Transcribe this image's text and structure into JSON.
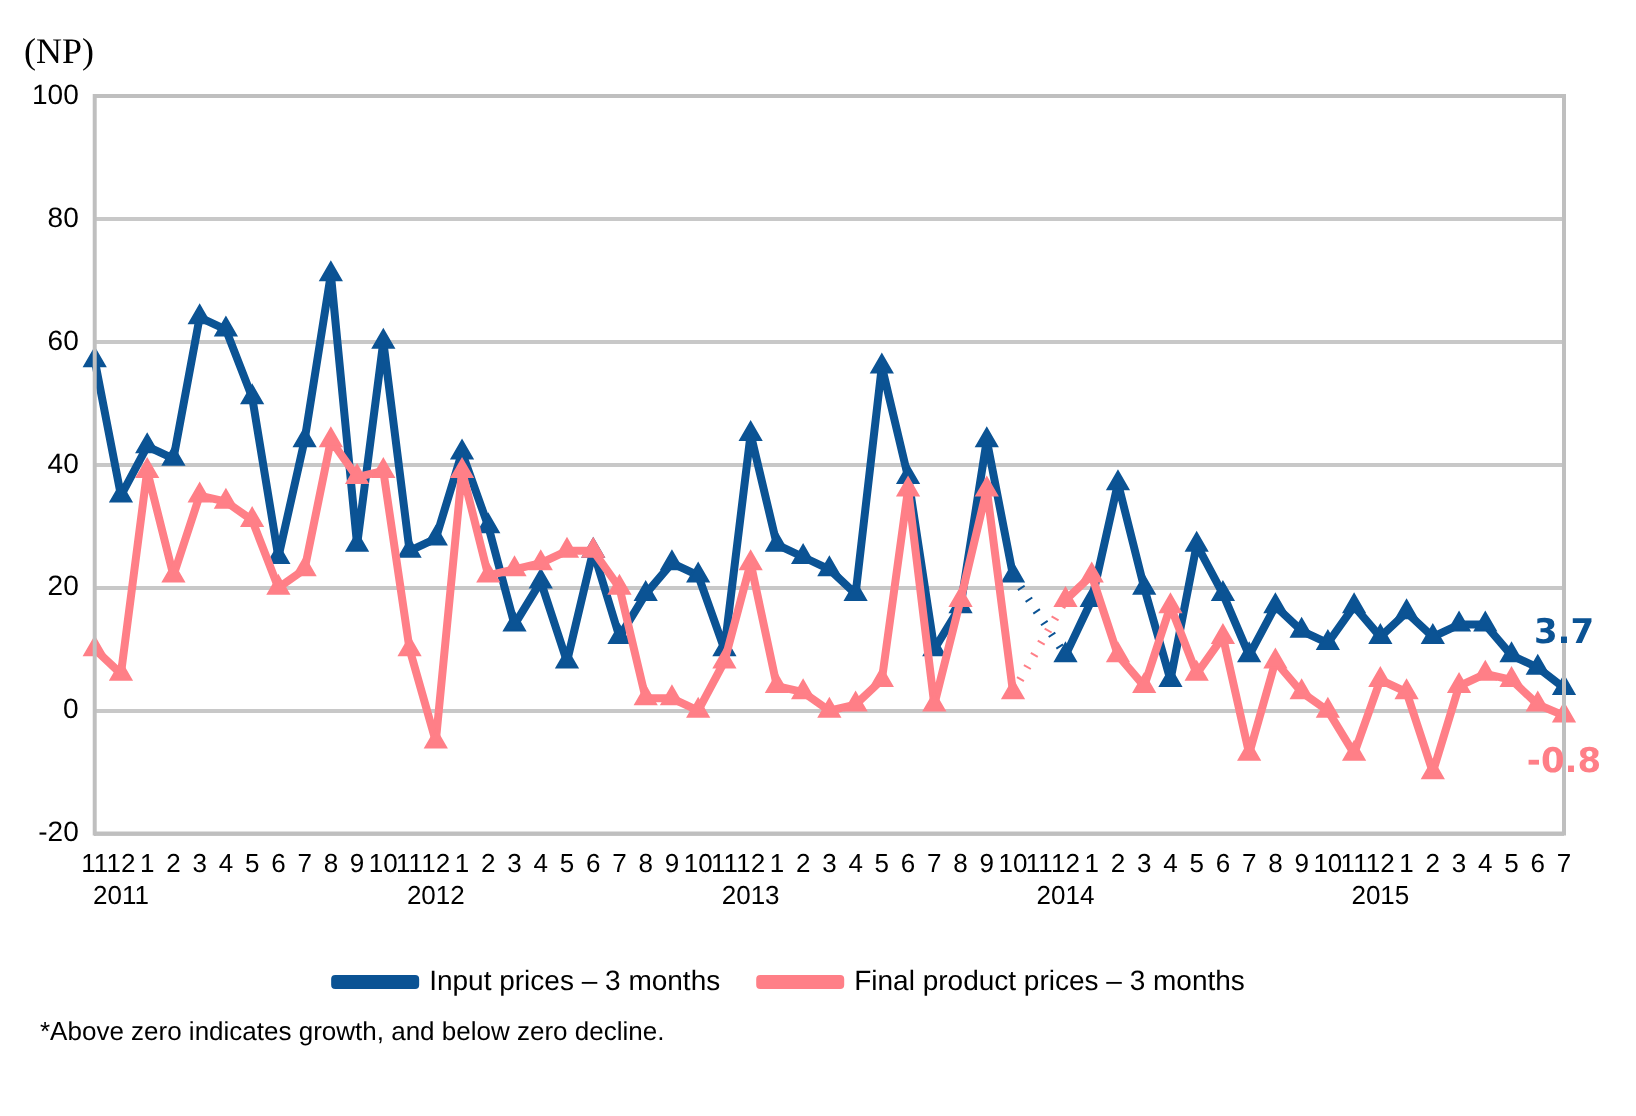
{
  "chart_data": {
    "type": "line",
    "ylabel": "(NP)",
    "categories": [
      "11",
      "12\n2011",
      "1",
      "2",
      "3",
      "4",
      "5",
      "6",
      "7",
      "8",
      "9",
      "10",
      "11",
      "12\n2012",
      "1",
      "2",
      "3",
      "4",
      "5",
      "6",
      "7",
      "8",
      "9",
      "10",
      "11",
      "12\n2013",
      "1",
      "2",
      "3",
      "4",
      "5",
      "6",
      "7",
      "8",
      "9",
      "10",
      "11",
      "12\n2014",
      "1",
      "2",
      "3",
      "4",
      "5",
      "6",
      "7",
      "8",
      "9",
      "10",
      "11",
      "12\n2015",
      "1",
      "2",
      "3",
      "4",
      "5",
      "6",
      "7"
    ],
    "series": [
      {
        "name": "Input prices – 3 months",
        "color": "#0b5394",
        "values": [
          57,
          35,
          43,
          41,
          64,
          62,
          51,
          25,
          44,
          71,
          27,
          60,
          26,
          28,
          42,
          30,
          14,
          21,
          8,
          26,
          12,
          19,
          24,
          22,
          10,
          45,
          27,
          25,
          23,
          19,
          56,
          38,
          10,
          17,
          44,
          22,
          null,
          9,
          18,
          37,
          20,
          5,
          27,
          19,
          9,
          17,
          13,
          11,
          17,
          12,
          16,
          12,
          14,
          14,
          9,
          7,
          3.7
        ],
        "value_labels": [
          null,
          null,
          null,
          null,
          null,
          null,
          null,
          null,
          null,
          null,
          null,
          null,
          null,
          null,
          null,
          null,
          null,
          null,
          null,
          null,
          null,
          null,
          null,
          null,
          null,
          null,
          null,
          null,
          null,
          null,
          null,
          null,
          null,
          null,
          null,
          null,
          null,
          null,
          null,
          null,
          null,
          null,
          null,
          null,
          null,
          null,
          null,
          null,
          null,
          null,
          null,
          null,
          null,
          null,
          null,
          null,
          "3.7"
        ]
      },
      {
        "name": "Final product prices – 3 months",
        "color": "#ff7f87",
        "values": [
          10,
          6,
          39,
          22,
          35,
          34,
          31,
          20,
          23,
          44,
          38,
          39,
          10,
          -5,
          39,
          22,
          23,
          24,
          26,
          26,
          20,
          2,
          2,
          0,
          8,
          24,
          4,
          3,
          0,
          1,
          5,
          36,
          1,
          18,
          36,
          3,
          null,
          18,
          22,
          9,
          4,
          17,
          6,
          12,
          -7,
          8,
          3,
          0,
          -7,
          5,
          3,
          -10,
          4,
          6,
          5,
          1,
          -0.8
        ],
        "value_labels": [
          null,
          null,
          null,
          null,
          null,
          null,
          null,
          null,
          null,
          null,
          null,
          null,
          null,
          null,
          null,
          null,
          null,
          null,
          null,
          null,
          null,
          null,
          null,
          null,
          null,
          null,
          null,
          null,
          null,
          null,
          null,
          null,
          null,
          null,
          null,
          null,
          null,
          null,
          null,
          null,
          null,
          null,
          null,
          null,
          null,
          null,
          null,
          null,
          null,
          null,
          null,
          null,
          null,
          null,
          null,
          null,
          "-0.8"
        ]
      }
    ],
    "ylim": [
      -20,
      100
    ],
    "yticks": [
      -20,
      0,
      20,
      40,
      60,
      80,
      100
    ],
    "grid": "y",
    "legend": "bottom",
    "marker": "triangle",
    "line_style": "solid",
    "annotations": [
      "*Above zero indicates growth, and below zero decline."
    ]
  }
}
